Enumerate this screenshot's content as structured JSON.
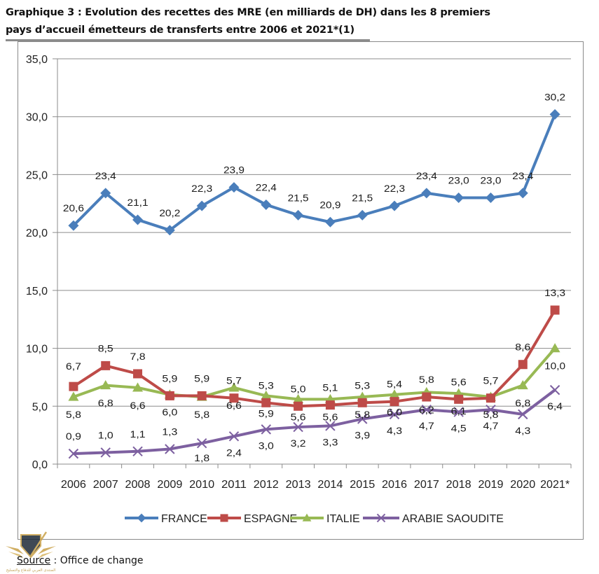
{
  "title": {
    "line1": "Graphique 3 : Evolution des recettes des MRE (en milliards de DH) dans les 8 premiers",
    "line2": "pays d’accueil émetteurs de transferts entre 2006 et 2021*(1)"
  },
  "source": {
    "label": "Source",
    "separator": " : ",
    "text": "Office de change"
  },
  "logo": {
    "name": "forum-emblem",
    "lettering": "المنتدى العربي للدفاع والتسليح"
  },
  "chart_data": {
    "type": "line",
    "title": "Evolution des recettes des MRE (en milliards de DH)",
    "xlabel": "",
    "ylabel": "",
    "ylim": [
      0,
      35
    ],
    "yticks": [
      "0,0",
      "5,0",
      "10,0",
      "15,0",
      "20,0",
      "25,0",
      "30,0",
      "35,0"
    ],
    "ytick_values": [
      0,
      5,
      10,
      15,
      20,
      25,
      30,
      35
    ],
    "grid": true,
    "legend_position": "bottom",
    "categories": [
      "2006",
      "2007",
      "2008",
      "2009",
      "2010",
      "2011",
      "2012",
      "2013",
      "2014",
      "2015",
      "2016",
      "2017",
      "2018",
      "2019",
      "2020",
      "2021*"
    ],
    "series": [
      {
        "name": "FRANCE",
        "color": "#4a7ebb",
        "marker": "diamond",
        "values": [
          20.6,
          23.4,
          21.1,
          20.2,
          22.3,
          23.9,
          22.4,
          21.5,
          20.9,
          21.5,
          22.3,
          23.4,
          23.0,
          23.0,
          23.4,
          30.2
        ],
        "labels": [
          "20,6",
          "23,4",
          "21,1",
          "20,2",
          "22,3",
          "23,9",
          "22,4",
          "21,5",
          "20,9",
          "21,5",
          "22,3",
          "23,4",
          "23,0",
          "23,0",
          "23,4",
          "30,2"
        ],
        "label_side": "above"
      },
      {
        "name": "ESPAGNE",
        "color": "#be4b48",
        "marker": "square",
        "values": [
          6.7,
          8.5,
          7.8,
          5.9,
          5.9,
          5.7,
          5.3,
          5.0,
          5.1,
          5.3,
          5.4,
          5.8,
          5.6,
          5.7,
          8.6,
          13.3
        ],
        "labels": [
          "6,7",
          "8,5",
          "7,8",
          "5,9",
          "5,9",
          "5,7",
          "5,3",
          "5,0",
          "5,1",
          "5,3",
          "5,4",
          "5,8",
          "5,6",
          "5,7",
          "8,6",
          "13,3"
        ],
        "label_side": "above"
      },
      {
        "name": "ITALIE",
        "color": "#98b954",
        "marker": "triangle",
        "values": [
          5.8,
          6.8,
          6.6,
          6.0,
          5.8,
          6.6,
          5.9,
          5.6,
          5.6,
          5.8,
          6.0,
          6.2,
          6.1,
          5.8,
          6.8,
          10.0
        ],
        "labels": [
          "5,8",
          "6,8",
          "6,6",
          "6,0",
          "5,8",
          "6,6",
          "5,9",
          "5,6",
          "5,6",
          "5,8",
          "6,0",
          "6,2",
          "6,1",
          "5,8",
          "6,8",
          "10,0"
        ],
        "label_side": "below"
      },
      {
        "name": "ARABIE SAOUDITE",
        "color": "#7d60a0",
        "marker": "x",
        "values": [
          0.9,
          1.0,
          1.1,
          1.3,
          1.8,
          2.4,
          3.0,
          3.2,
          3.3,
          3.9,
          4.3,
          4.7,
          4.5,
          4.7,
          4.3,
          6.4
        ],
        "labels": [
          "0,9",
          "1,0",
          "1,1",
          "1,3",
          "1,8",
          "2,4",
          "3,0",
          "3,2",
          "3,3",
          "3,9",
          "4,3",
          "4,7",
          "4,5",
          "4,7",
          "4,3",
          "6,4"
        ],
        "label_side": "mixed"
      }
    ]
  }
}
